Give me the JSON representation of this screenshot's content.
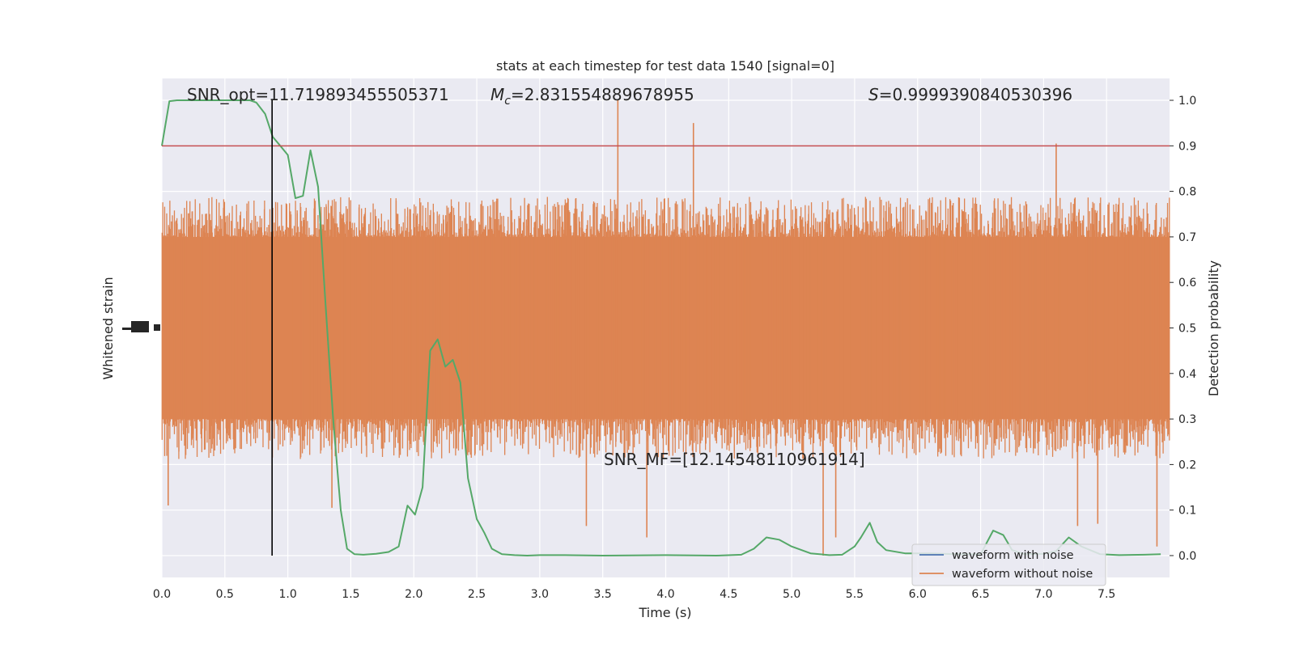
{
  "chart_data": {
    "type": "line",
    "title": "stats at each timestep for test data 1540 [signal=0]",
    "xlabel": "Time (s)",
    "ylabel_left": "Whitened strain",
    "ylabel_right": "Detection probability",
    "xlim": [
      0.0,
      8.0
    ],
    "ylim_right": [
      -0.048,
      1.048
    ],
    "grid": true,
    "x_ticks": [
      "0.0",
      "0.5",
      "1.0",
      "1.5",
      "2.0",
      "2.5",
      "3.0",
      "3.5",
      "4.0",
      "4.5",
      "5.0",
      "5.5",
      "6.0",
      "6.5",
      "7.0",
      "7.5"
    ],
    "y_right_ticks": [
      "0.0",
      "0.1",
      "0.2",
      "0.3",
      "0.4",
      "0.5",
      "0.6",
      "0.7",
      "0.8",
      "0.9",
      "1.0"
    ],
    "annotations": {
      "snr_opt": "SNR_opt=11.719893455505371",
      "mc_symbol": "M",
      "mc_subscript": "c",
      "mc_value": "=2.831554889678955",
      "s_symbol": "S",
      "s_value": "=0.9999390840530396",
      "snr_mf": "SNR_MF=[12.14548110961914]"
    },
    "legend": {
      "placement": "bottom-right",
      "entries": [
        "waveform with noise",
        "waveform without noise"
      ]
    },
    "threshold": 0.9,
    "marker_time": 0.875,
    "series": [
      {
        "name": "waveform without noise",
        "color": "#dd8452",
        "kind": "noise-strain",
        "core_band": [
          0.3,
          0.7
        ],
        "spike_top_mean": 0.74,
        "spike_bottom_mean": 0.26,
        "count": 1600,
        "outliers": [
          {
            "t": 3.62,
            "v": 1.0
          },
          {
            "t": 4.22,
            "v": 0.95
          },
          {
            "t": 7.1,
            "v": 0.905
          },
          {
            "t": 5.25,
            "v": 0.0
          },
          {
            "t": 7.9,
            "v": 0.02
          },
          {
            "t": 3.85,
            "v": 0.04
          },
          {
            "t": 5.35,
            "v": 0.04
          },
          {
            "t": 3.37,
            "v": 0.065
          },
          {
            "t": 0.05,
            "v": 0.11
          },
          {
            "t": 1.35,
            "v": 0.105
          },
          {
            "t": 7.27,
            "v": 0.065
          },
          {
            "t": 7.43,
            "v": 0.07
          }
        ]
      },
      {
        "name": "detection probability",
        "color": "#55a868",
        "t": [
          0.0,
          0.06,
          0.12,
          0.2,
          0.3,
          0.45,
          0.6,
          0.7,
          0.75,
          0.82,
          0.88,
          0.94,
          1.0,
          1.06,
          1.12,
          1.18,
          1.24,
          1.3,
          1.36,
          1.42,
          1.47,
          1.53,
          1.6,
          1.7,
          1.8,
          1.88,
          1.95,
          2.01,
          2.07,
          2.13,
          2.19,
          2.25,
          2.31,
          2.37,
          2.43,
          2.5,
          2.56,
          2.62,
          2.7,
          2.8,
          2.9,
          3.0,
          3.2,
          3.5,
          4.0,
          4.4,
          4.6,
          4.7,
          4.8,
          4.9,
          5.0,
          5.15,
          5.3,
          5.4,
          5.5,
          5.55,
          5.62,
          5.68,
          5.75,
          5.9,
          6.1,
          6.3,
          6.5,
          6.6,
          6.68,
          6.75,
          6.85,
          7.0,
          7.1,
          7.2,
          7.3,
          7.45,
          7.6,
          7.8,
          7.93
        ],
        "values": [
          0.9,
          0.998,
          1.0,
          1.0,
          1.0,
          1.0,
          1.0,
          1.0,
          0.995,
          0.97,
          0.92,
          0.9,
          0.88,
          0.785,
          0.79,
          0.89,
          0.81,
          0.55,
          0.3,
          0.1,
          0.015,
          0.003,
          0.002,
          0.004,
          0.008,
          0.02,
          0.11,
          0.09,
          0.15,
          0.45,
          0.475,
          0.415,
          0.43,
          0.38,
          0.17,
          0.08,
          0.05,
          0.015,
          0.003,
          0.001,
          0.0,
          0.001,
          0.001,
          0.0,
          0.001,
          0.0,
          0.002,
          0.015,
          0.04,
          0.035,
          0.02,
          0.005,
          0.001,
          0.002,
          0.02,
          0.04,
          0.072,
          0.03,
          0.012,
          0.005,
          0.005,
          0.003,
          0.003,
          0.055,
          0.045,
          0.012,
          0.003,
          0.004,
          0.01,
          0.04,
          0.02,
          0.003,
          0.001,
          0.002,
          0.003
        ]
      },
      {
        "name": "threshold",
        "color": "#c44e52",
        "value": 0.9
      }
    ]
  }
}
